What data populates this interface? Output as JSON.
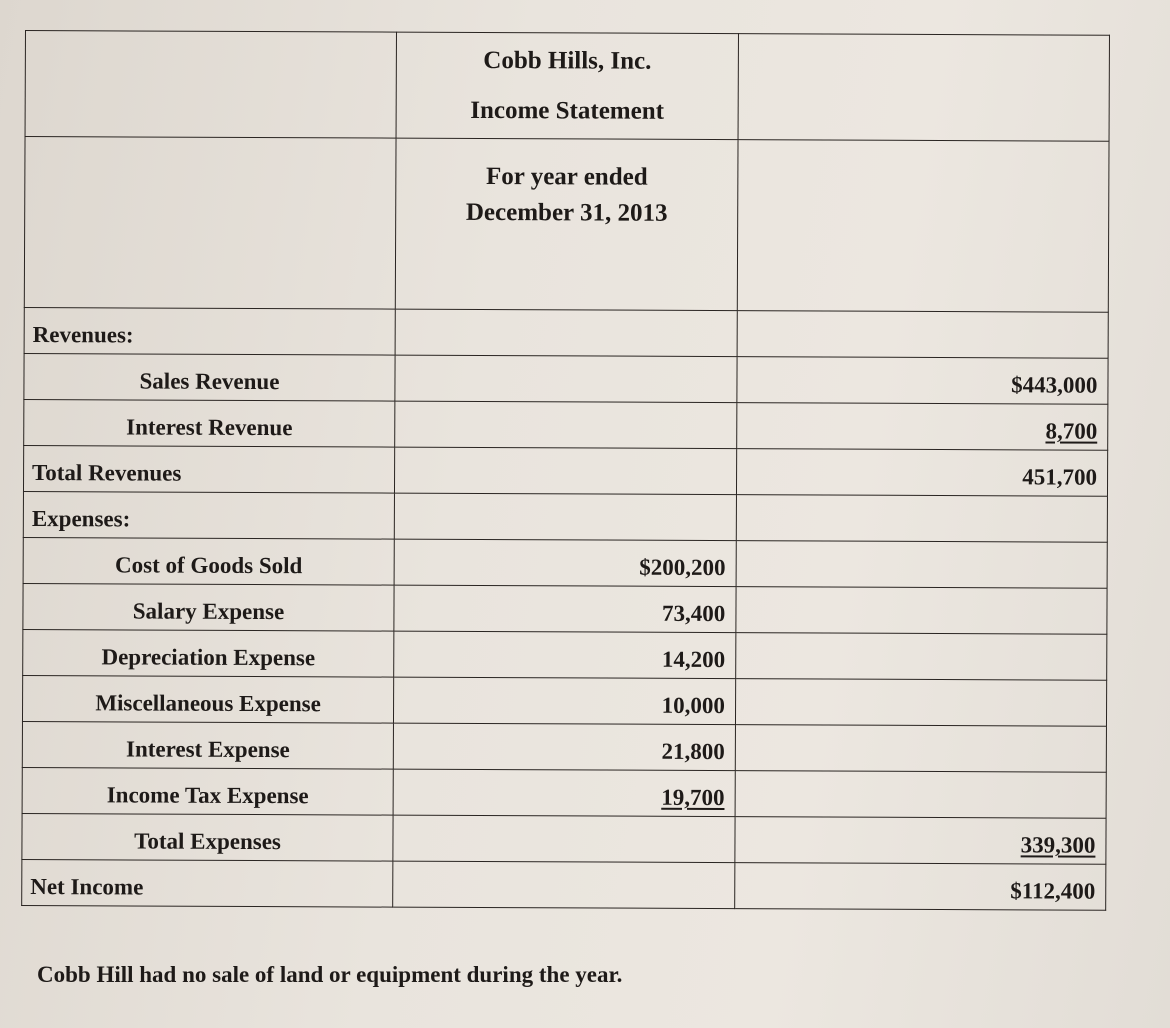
{
  "header": {
    "company": "Cobb Hills, Inc.",
    "statement": "Income Statement",
    "period_line1": "For year ended",
    "period_line2": "December 31, 2013"
  },
  "rows": [
    {
      "label": "Revenues:",
      "mid": "",
      "right": ""
    },
    {
      "label": "Sales Revenue",
      "mid": "",
      "right": "$443,000"
    },
    {
      "label": "Interest Revenue",
      "mid": "",
      "right": "8,700"
    },
    {
      "label": "Total Revenues",
      "mid": "",
      "right": "451,700"
    },
    {
      "label": "Expenses:",
      "mid": "",
      "right": ""
    },
    {
      "label": "Cost of Goods Sold",
      "mid": "$200,200",
      "right": ""
    },
    {
      "label": "Salary Expense",
      "mid": "73,400",
      "right": ""
    },
    {
      "label": "Depreciation Expense",
      "mid": "14,200",
      "right": ""
    },
    {
      "label": "Miscellaneous Expense",
      "mid": "10,000",
      "right": ""
    },
    {
      "label": "Interest Expense",
      "mid": "21,800",
      "right": ""
    },
    {
      "label": "Income Tax Expense",
      "mid": "19,700",
      "right": ""
    },
    {
      "label": "Total Expenses",
      "mid": "",
      "right": "339,300"
    },
    {
      "label": "Net Income",
      "mid": "",
      "right": "$112,400"
    }
  ],
  "footnote": "Cobb Hill had no sale of land or equipment during the year."
}
